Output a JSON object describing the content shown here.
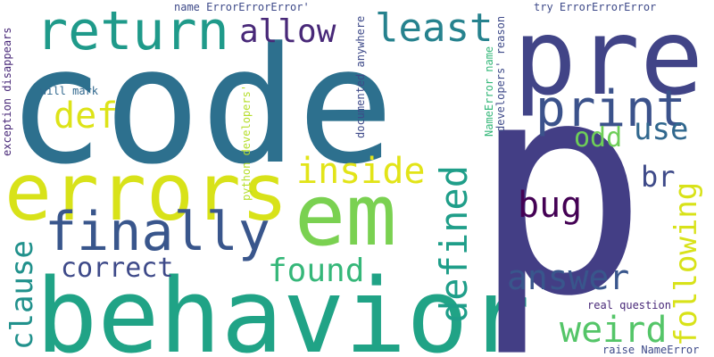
{
  "words": {
    "code": "code",
    "behavior": "behavior",
    "errors": "errors",
    "em": "em",
    "pre": "pre",
    "p": "p",
    "return": "return",
    "finally": "finally",
    "print": "print",
    "least": "least",
    "allow": "allow",
    "def": "def",
    "inside": "inside",
    "use": "use",
    "odd": "odd",
    "bug": "bug",
    "br": "br",
    "found": "found",
    "correct": "correct",
    "answer": "answer",
    "weird": "weird",
    "defined": "defined",
    "following": "following",
    "clause": "clause",
    "name_error_1": "name ErrorErrorError'",
    "try_error": "try ErrorErrorError",
    "exception": "exception disappears",
    "will_mark": "will mark",
    "python_devs": "python developers'",
    "documented": "documented anywhere",
    "nameerror_name": "NameError name",
    "devs_reason": "developers' reason",
    "real_question": "real question",
    "raise_nameerror": "raise NameError"
  },
  "colors": {
    "dark_purple": "#481a6c",
    "indigo": "#3e4a89",
    "blue": "#31688e",
    "teal": "#26828e",
    "green_teal": "#1f9e89",
    "green": "#35b779",
    "lime": "#6ece58",
    "light_green": "#7ad151",
    "yellow": "#dde318"
  }
}
